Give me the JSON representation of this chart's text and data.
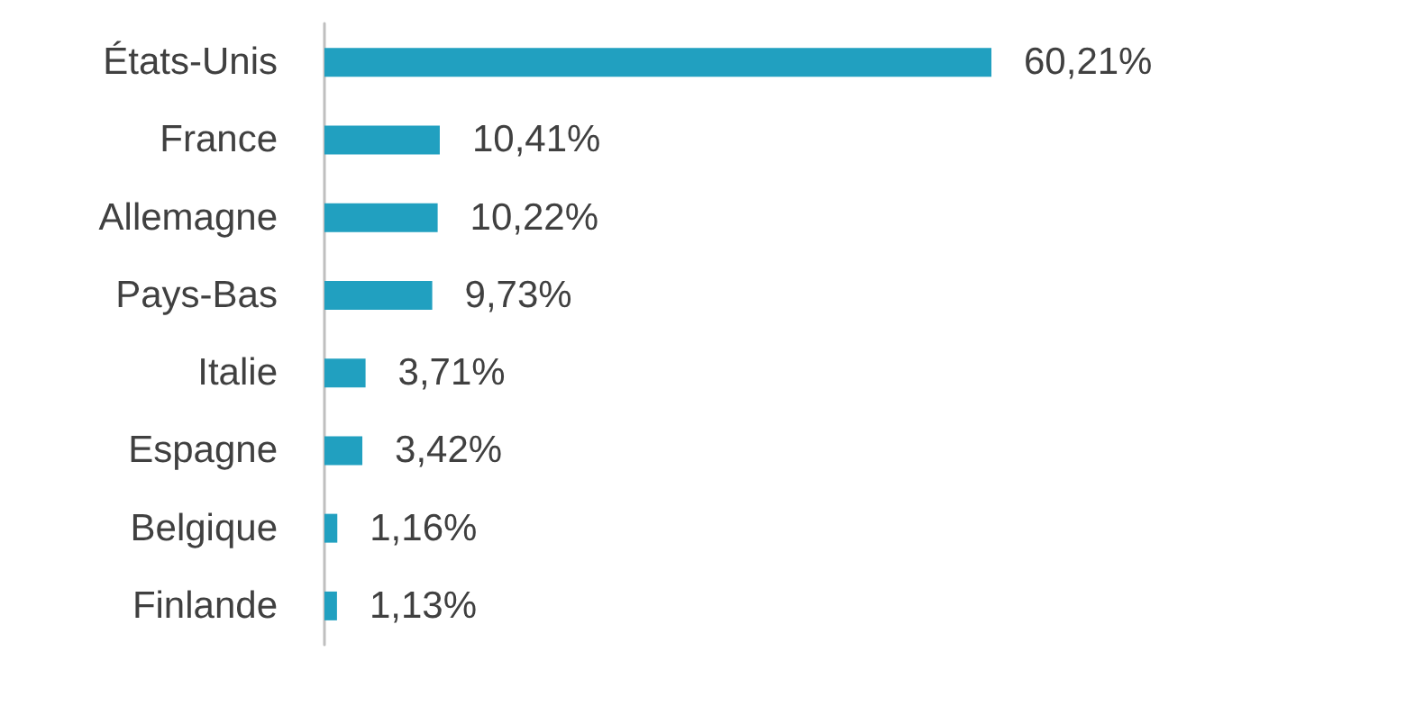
{
  "chart_data": {
    "type": "bar",
    "orientation": "horizontal",
    "categories": [
      "États-Unis",
      "France",
      "Allemagne",
      "Pays-Bas",
      "Italie",
      "Espagne",
      "Belgique",
      "Finlande"
    ],
    "values": [
      60.21,
      10.41,
      10.22,
      9.73,
      3.71,
      3.42,
      1.16,
      1.13
    ],
    "value_labels": [
      "60,21%",
      "10,41%",
      "10,22%",
      "9,73%",
      "3,71%",
      "3,42%",
      "1,16%",
      "1,13%"
    ],
    "color": "#21a0c0"
  }
}
